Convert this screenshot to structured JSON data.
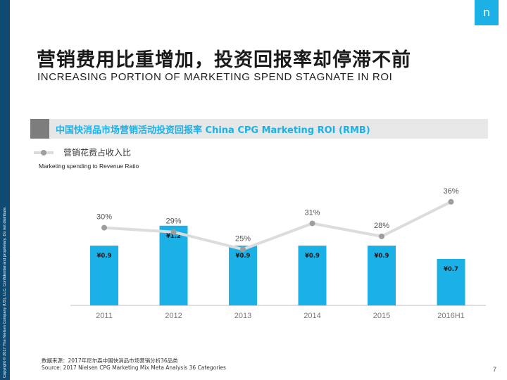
{
  "slide": {
    "copyright": "Copyright © 2017 The Nielsen Company (US), LLC. Confidential and proprietary. Do not distribute.",
    "logo": "n",
    "title_cn": "营销费用比重增加，投资回报率却停滞不前",
    "title_en": "INCREASING PORTION OF MARKETING SPEND STAGNATE IN ROI",
    "chart_title": "中国快消品市场营销活动投资回报率 China CPG Marketing ROI (RMB)",
    "source_cn": "数据来源：2017年尼尔森中国快消品市场营销分析36品类",
    "source_en": "Source: 2017 Nielsen CPG Marketing Mix Meta Analysis 36 Categories",
    "page_number": "7"
  },
  "colors": {
    "bar": "#1bb1e7",
    "line": "#dcdcdc",
    "marker": "#9e9e9e",
    "header_bg": "#e7e7e7",
    "accent_dark": "#0f4a73"
  },
  "chart_data": {
    "type": "bar",
    "title": "中国快消品市场营销活动投资回报率 China CPG Marketing ROI (RMB)",
    "categories": [
      "2011",
      "2012",
      "2013",
      "2014",
      "2015",
      "2016H1"
    ],
    "series": [
      {
        "name": "ROI (RMB)",
        "type": "bar",
        "values": [
          0.9,
          1.2,
          0.9,
          0.9,
          0.9,
          0.7
        ],
        "labels": [
          "¥0.9",
          "¥1.2",
          "¥0.9",
          "¥0.9",
          "¥0.9",
          "¥0.7"
        ]
      },
      {
        "name": "营销花费占收入比",
        "name_en": "Marketing spending to Revenue Ratio",
        "type": "line",
        "values": [
          30,
          29,
          25,
          31,
          28,
          36
        ],
        "labels": [
          "30%",
          "29%",
          "25%",
          "31%",
          "28%",
          "36%"
        ]
      }
    ],
    "legend": {
      "label_cn": "营销花费占收入比",
      "label_en": "Marketing spending to Revenue Ratio",
      "position": "top-left"
    },
    "ylim_bar": [
      0,
      1.95
    ],
    "ylim_line": [
      12,
      42
    ],
    "grid": false
  }
}
